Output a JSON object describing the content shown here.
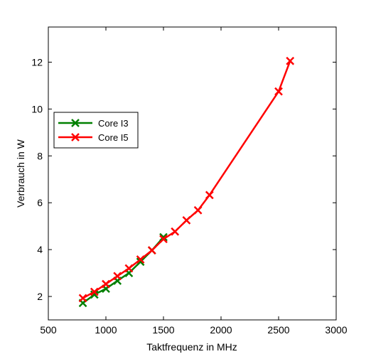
{
  "chart_data": {
    "type": "line",
    "xlabel": "Taktfrequenz in MHz",
    "ylabel": "Verbrauch in W",
    "xlim": [
      500,
      3000
    ],
    "ylim": [
      1,
      13.5
    ],
    "xticks": [
      500,
      1000,
      1500,
      2000,
      2500,
      3000
    ],
    "yticks": [
      2,
      4,
      6,
      8,
      10,
      12
    ],
    "grid": false,
    "legend_position": "left",
    "series": [
      {
        "name": "Core I3",
        "color": "#008000",
        "marker": "x",
        "x": [
          800,
          900,
          1000,
          1100,
          1200,
          1300,
          1400,
          1500
        ],
        "y": [
          1.72,
          2.08,
          2.33,
          2.67,
          3.0,
          3.48,
          3.97,
          4.53
        ]
      },
      {
        "name": "Core I5",
        "color": "#ff0000",
        "marker": "x",
        "x": [
          800,
          900,
          1000,
          1100,
          1200,
          1300,
          1400,
          1500,
          1600,
          1700,
          1800,
          1900,
          2500,
          2600
        ],
        "y": [
          1.93,
          2.2,
          2.53,
          2.87,
          3.2,
          3.58,
          3.97,
          4.45,
          4.77,
          5.25,
          5.68,
          6.33,
          10.75,
          12.05
        ]
      }
    ]
  }
}
